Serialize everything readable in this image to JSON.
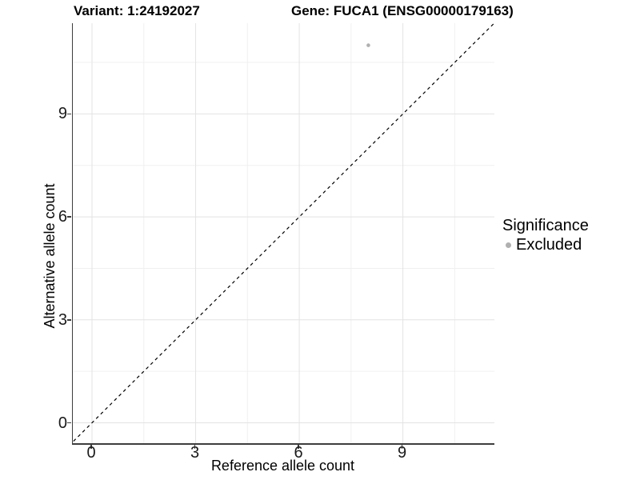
{
  "title": {
    "variant": "Variant: 1:24192027",
    "gene": "Gene: FUCA1 (ENSG00000179163)"
  },
  "legend": {
    "title": "Significance",
    "items": [
      {
        "label": "Excluded",
        "color": "#b0b0b0"
      }
    ]
  },
  "chart_data": {
    "type": "scatter",
    "title": "Variant: 1:24192027 — Gene: FUCA1 (ENSG00000179163)",
    "xlabel": "Reference allele count",
    "ylabel": "Alternative allele count",
    "x_ticks": [
      0,
      3,
      6,
      9
    ],
    "y_ticks": [
      0,
      3,
      6,
      9
    ],
    "x_minor_ticks": [
      1.5,
      4.5,
      7.5,
      10.5
    ],
    "y_minor_ticks": [
      1.5,
      4.5,
      7.5,
      10.5
    ],
    "xlim": [
      -0.56,
      11.64
    ],
    "ylim": [
      -0.6,
      11.7
    ],
    "grid": "major-and-minor",
    "legend_position": "right",
    "identity_line": {
      "equation": "y = x",
      "style": "dashed",
      "color": "#000000"
    },
    "series": [
      {
        "name": "Excluded",
        "color": "#b0b0b0",
        "points": [
          {
            "x": 8,
            "y": 11
          }
        ]
      }
    ],
    "colors": {
      "grid_major": "#e3e3e3",
      "grid_minor": "#f0f0f0",
      "axis_line": "#3d3d3d",
      "background": "#ffffff"
    }
  }
}
